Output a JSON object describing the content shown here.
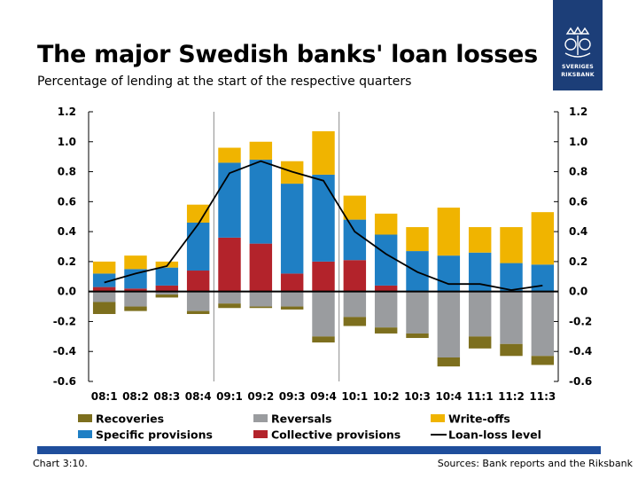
{
  "header": {
    "title": "The major Swedish banks' loan losses",
    "subtitle": "Percentage of lending at the start of the respective quarters"
  },
  "logo": {
    "line1": "SVERIGES",
    "line2": "RIKSBANK",
    "icon": "crown-crest-icon"
  },
  "footer": {
    "chart_number": "Chart 3:10.",
    "sources": "Sources: Bank reports and the Riksbank"
  },
  "colors": {
    "recoveries": "#7d6f1e",
    "reversals": "#9a9c9f",
    "writeoffs": "#f0b400",
    "specific": "#1f7fc4",
    "collective": "#b3232b",
    "line": "#000000",
    "bottom_bar": "#1f4e9c",
    "logo_bg": "#1c3e78"
  },
  "chart_data": {
    "type": "bar",
    "stacked": true,
    "categories": [
      "08:1",
      "08:2",
      "08:3",
      "08:4",
      "09:1",
      "09:2",
      "09:3",
      "09:4",
      "10:1",
      "10:2",
      "10:3",
      "10:4",
      "11:1",
      "11:2",
      "11:3"
    ],
    "ylim": [
      -0.6,
      1.2
    ],
    "yticks": [
      -0.6,
      -0.4,
      -0.2,
      0.0,
      0.2,
      0.4,
      0.6,
      0.8,
      1.0,
      1.2
    ],
    "ytick_labels": [
      "-0.6",
      "-0.4",
      "-0.2",
      "0.0",
      "0.2",
      "0.4",
      "0.6",
      "0.8",
      "1.0",
      "1.2"
    ],
    "year_separators_after": [
      "08:4",
      "09:4"
    ],
    "legend_position": "bottom",
    "series": [
      {
        "name": "Collective provisions",
        "key": "collective",
        "values": [
          0.03,
          0.02,
          0.04,
          0.14,
          0.36,
          0.32,
          0.12,
          0.2,
          0.21,
          0.04,
          0.0,
          0.0,
          0.0,
          0.0,
          0.0
        ]
      },
      {
        "name": "Specific provisions",
        "key": "specific",
        "values": [
          0.09,
          0.13,
          0.12,
          0.32,
          0.5,
          0.56,
          0.6,
          0.58,
          0.27,
          0.34,
          0.27,
          0.24,
          0.26,
          0.19,
          0.18
        ]
      },
      {
        "name": "Write-offs",
        "key": "writeoffs",
        "values": [
          0.08,
          0.09,
          0.04,
          0.12,
          0.1,
          0.12,
          0.15,
          0.29,
          0.16,
          0.14,
          0.16,
          0.32,
          0.17,
          0.24,
          0.35
        ]
      },
      {
        "name": "Reversals",
        "key": "reversals",
        "values": [
          -0.07,
          -0.1,
          -0.02,
          -0.13,
          -0.08,
          -0.1,
          -0.1,
          -0.3,
          -0.17,
          -0.24,
          -0.28,
          -0.44,
          -0.3,
          -0.35,
          -0.43
        ]
      },
      {
        "name": "Recoveries",
        "key": "recoveries",
        "values": [
          -0.08,
          -0.03,
          -0.02,
          -0.02,
          -0.03,
          -0.01,
          -0.02,
          -0.04,
          -0.06,
          -0.04,
          -0.03,
          -0.06,
          -0.08,
          -0.08,
          -0.06
        ]
      }
    ],
    "line_series": {
      "name": "Loan-loss level",
      "key": "line",
      "values": [
        0.06,
        0.12,
        0.17,
        0.45,
        0.79,
        0.87,
        0.8,
        0.74,
        0.4,
        0.25,
        0.13,
        0.05,
        0.05,
        0.01,
        0.04
      ]
    },
    "legend": [
      {
        "name": "Recoveries",
        "key": "recoveries",
        "kind": "box"
      },
      {
        "name": "Reversals",
        "key": "reversals",
        "kind": "box"
      },
      {
        "name": "Write-offs",
        "key": "writeoffs",
        "kind": "box"
      },
      {
        "name": "Specific provisions",
        "key": "specific",
        "kind": "box"
      },
      {
        "name": "Collective provisions",
        "key": "collective",
        "kind": "box"
      },
      {
        "name": "Loan-loss level",
        "key": "line",
        "kind": "line"
      }
    ]
  }
}
